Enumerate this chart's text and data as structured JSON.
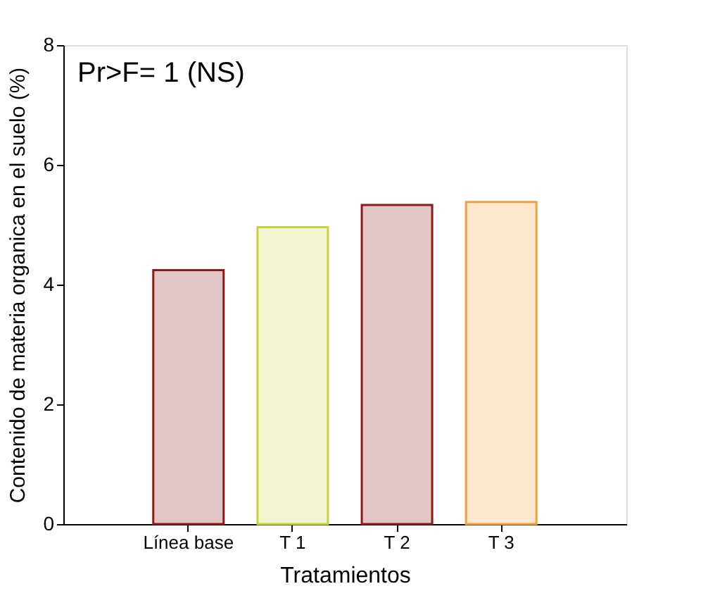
{
  "chart_data": {
    "type": "bar",
    "xlabel": "Tratamientos",
    "ylabel": "Contenido de materia organica en el suelo (%)",
    "categories": [
      "Línea base",
      "T 1",
      "T 2",
      "T 3"
    ],
    "values": [
      4.24,
      4.96,
      5.33,
      5.38
    ],
    "colors": [
      "#8b1a1a",
      "#c8d23c",
      "#8b1a1a",
      "#f4a040"
    ],
    "ylim": [
      0,
      8
    ],
    "yticks": [
      0,
      2,
      4,
      6,
      8
    ],
    "grid": false,
    "annotations": [
      "Pr>F= 1 (NS)"
    ]
  }
}
